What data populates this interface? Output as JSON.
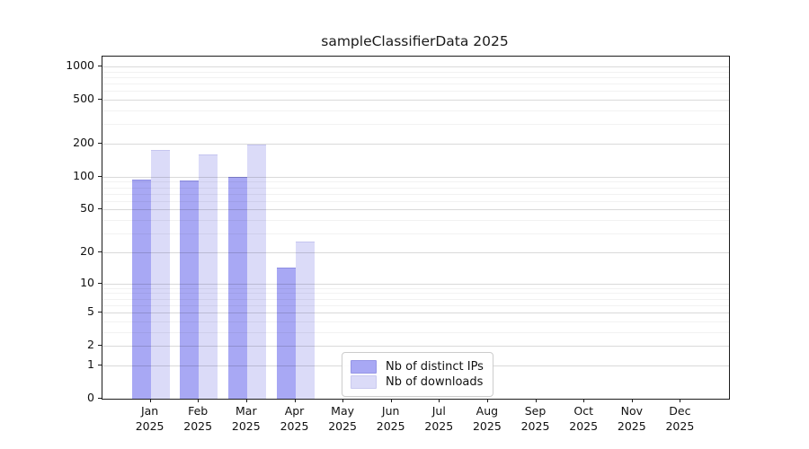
{
  "title": "sampleClassifierData 2025",
  "year": "2025",
  "legend": {
    "items": [
      {
        "label": "Nb of distinct IPs",
        "color": "#a8a8f4"
      },
      {
        "label": "Nb of downloads",
        "color": "#dbdbf8"
      }
    ]
  },
  "chart_data": {
    "type": "bar",
    "title": "sampleClassifierData 2025",
    "categories": [
      "Jan 2025",
      "Feb 2025",
      "Mar 2025",
      "Apr 2025",
      "May 2025",
      "Jun 2025",
      "Jul 2025",
      "Aug 2025",
      "Sep 2025",
      "Oct 2025",
      "Nov 2025",
      "Dec 2025"
    ],
    "month_names": [
      "Jan",
      "Feb",
      "Mar",
      "Apr",
      "May",
      "Jun",
      "Jul",
      "Aug",
      "Sep",
      "Oct",
      "Nov",
      "Dec"
    ],
    "series": [
      {
        "name": "Nb of distinct IPs",
        "color": "#a8a8f4",
        "values": [
          93,
          90,
          97,
          14,
          0,
          0,
          0,
          0,
          0,
          0,
          0,
          0
        ]
      },
      {
        "name": "Nb of downloads",
        "color": "#dbdbf8",
        "values": [
          172,
          158,
          193,
          25,
          0,
          0,
          0,
          0,
          0,
          0,
          0,
          0
        ]
      }
    ],
    "xlabel": "",
    "ylabel": "",
    "yscale": "log10(1+y)",
    "yticks": [
      0,
      1,
      2,
      5,
      10,
      20,
      50,
      100,
      200,
      500,
      1000
    ],
    "minor_gridlines": [
      3,
      4,
      6,
      7,
      8,
      9,
      30,
      40,
      60,
      70,
      80,
      90,
      300,
      400,
      600,
      700,
      800,
      900
    ],
    "ylim": [
      0,
      1230
    ],
    "grid": true,
    "legend_position": "lower center"
  }
}
